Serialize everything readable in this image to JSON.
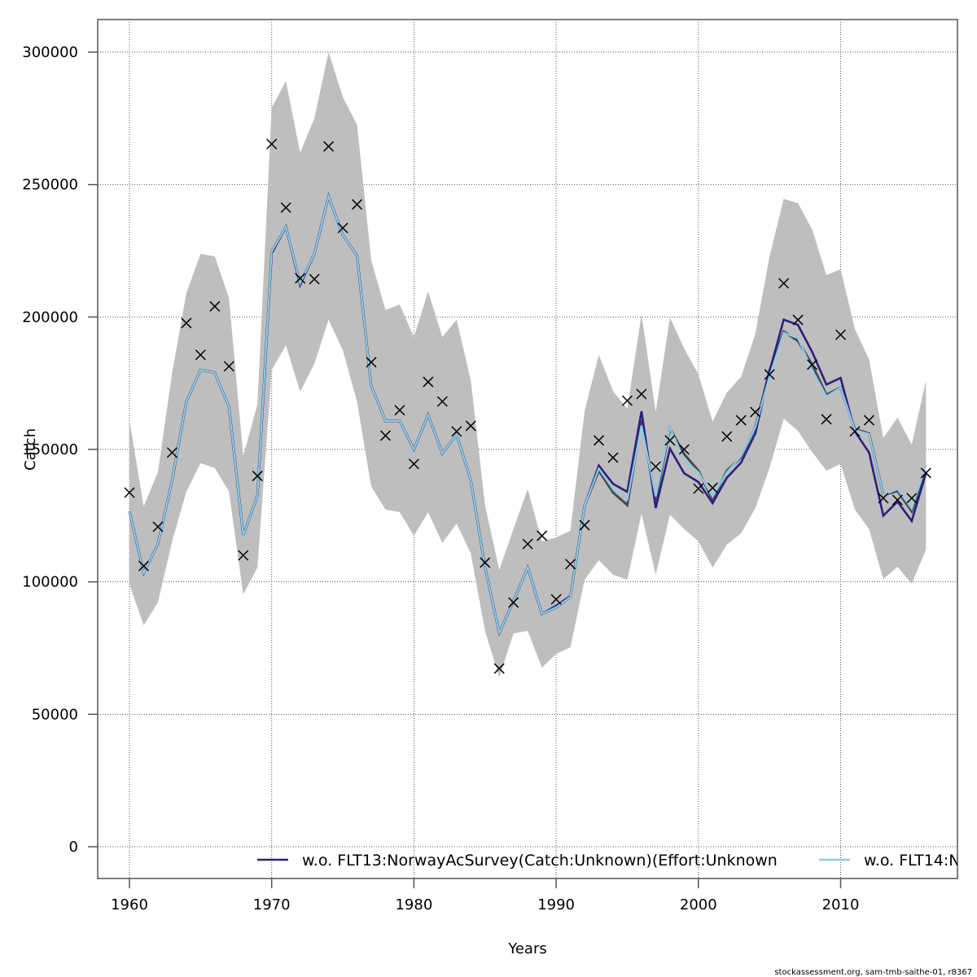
{
  "chart_data": {
    "type": "line",
    "title": "",
    "xlabel": "Years",
    "ylabel": "Catch",
    "xlim": [
      1957.8,
      2018.2
    ],
    "ylim": [
      -12000,
      313000
    ],
    "grid": true,
    "x_ticks": [
      1960,
      1970,
      1980,
      1990,
      2000,
      2010
    ],
    "x_tick_labels": [
      "1960",
      "1970",
      "1980",
      "1990",
      "2000",
      "2010"
    ],
    "y_ticks": [
      0,
      50000,
      100000,
      150000,
      200000,
      250000,
      300000
    ],
    "y_tick_labels": [
      "0",
      "50000",
      "100000",
      "150000",
      "200000",
      "250000",
      "300000"
    ],
    "legend_position": "bottom",
    "legend": [
      {
        "label": "w.o. FLT13:NorwayAcSurvey(Catch:Unknown)(Effort:Unknown",
        "color": "#2c1f80"
      },
      {
        "label": "w.o. FLT14:N",
        "color": "#87ceeb"
      }
    ],
    "footer": "stockassessment.org, sam-tmb-saithe-01, r8367",
    "colors": {
      "band": "#bebebe",
      "base_line": "#4a4a4a",
      "flt13": "#2c1f80",
      "flt14": "#87ceeb",
      "observed": "#000000",
      "grid": "#555555"
    },
    "years": [
      1960,
      1961,
      1962,
      1963,
      1964,
      1965,
      1966,
      1967,
      1968,
      1969,
      1970,
      1971,
      1972,
      1973,
      1974,
      1975,
      1976,
      1977,
      1978,
      1979,
      1980,
      1981,
      1982,
      1983,
      1984,
      1985,
      1986,
      1987,
      1988,
      1989,
      1990,
      1991,
      1992,
      1993,
      1994,
      1995,
      1996,
      1997,
      1998,
      1999,
      2000,
      2001,
      2002,
      2003,
      2004,
      2005,
      2006,
      2007,
      2008,
      2009,
      2010,
      2011,
      2012,
      2013,
      2014,
      2015,
      2016
    ],
    "band_upper": [
      161000,
      128500,
      141400,
      178900,
      209000,
      223800,
      222900,
      207000,
      147500,
      167000,
      279000,
      289000,
      262000,
      275000,
      300000,
      283000,
      272600,
      221400,
      202600,
      204700,
      192400,
      209600,
      192400,
      199000,
      176000,
      129000,
      104500,
      120000,
      135000,
      115300,
      116800,
      119300,
      164500,
      185700,
      172000,
      165400,
      201000,
      164100,
      199800,
      188100,
      178300,
      160500,
      171500,
      177400,
      193600,
      222800,
      244600,
      243000,
      233000,
      215800,
      218000,
      195500,
      184000,
      154300,
      162000,
      151800,
      176000
    ],
    "band_lower": [
      99000,
      83600,
      92200,
      115300,
      134000,
      144800,
      143000,
      134000,
      95300,
      105400,
      180000,
      189400,
      171800,
      182300,
      199000,
      187500,
      168000,
      136000,
      127300,
      126300,
      117400,
      126300,
      114700,
      122000,
      110700,
      81500,
      64000,
      80500,
      81500,
      67600,
      72800,
      75300,
      100800,
      108200,
      102700,
      100800,
      125700,
      102700,
      125400,
      119900,
      115300,
      105400,
      114000,
      118300,
      127800,
      143000,
      161600,
      157000,
      149000,
      142000,
      144500,
      127300,
      119900,
      101000,
      105700,
      99300,
      112200
    ],
    "series": [
      {
        "name": "base",
        "values": [
          126600,
          103300,
          114300,
          138300,
          168000,
          180000,
          179000,
          166000,
          117700,
          132500,
          224700,
          234000,
          212700,
          223800,
          245600,
          230900,
          223200,
          174000,
          160800,
          160800,
          150000,
          163000,
          148500,
          155600,
          138300,
          105400,
          80800,
          92800,
          105400,
          87900,
          90400,
          94300,
          128800,
          142000,
          133700,
          129000,
          161000,
          130600,
          158000,
          148200,
          142000,
          131000,
          142000,
          147000,
          158300,
          179800,
          194500,
          191000,
          182000,
          170600,
          173400,
          157700,
          156000,
          132800,
          134300,
          126600,
          141400
        ]
      },
      {
        "name": "w.o. FLT13:NorwayAcSurvey(Catch:Unknown)(Effort:Unknown",
        "values": [
          126600,
          103300,
          114300,
          138300,
          168000,
          180000,
          179000,
          166000,
          117700,
          132500,
          224000,
          234000,
          212000,
          223800,
          245600,
          230900,
          223200,
          174000,
          160800,
          160800,
          150000,
          163000,
          148500,
          155600,
          138300,
          105400,
          80800,
          92800,
          105400,
          87900,
          91000,
          94600,
          128800,
          143900,
          137000,
          134000,
          164400,
          127900,
          150300,
          141000,
          137700,
          129700,
          139300,
          145000,
          156000,
          179500,
          199000,
          197000,
          186800,
          174500,
          177000,
          156800,
          148800,
          125000,
          130300,
          123000,
          141000
        ]
      },
      {
        "name": "w.o. FLT14:N",
        "values": [
          126600,
          103300,
          114300,
          138300,
          168000,
          180000,
          179000,
          166000,
          117700,
          132500,
          224700,
          234000,
          212700,
          223800,
          245600,
          230900,
          223200,
          174000,
          160800,
          160800,
          150000,
          163000,
          148500,
          155600,
          138300,
          105400,
          80800,
          92800,
          105400,
          87900,
          90400,
          94300,
          128800,
          142800,
          135000,
          131000,
          159000,
          132200,
          158300,
          146000,
          141400,
          132200,
          141400,
          147500,
          158300,
          177600,
          194000,
          192000,
          180000,
          170000,
          173400,
          157400,
          155800,
          132800,
          135000,
          127600,
          143900
        ]
      }
    ],
    "observed": [
      133700,
      106000,
      120800,
      148800,
      197700,
      185700,
      204000,
      181400,
      110000,
      140000,
      265300,
      241300,
      214600,
      214300,
      264400,
      233600,
      242500,
      182900,
      155200,
      164800,
      144500,
      175500,
      168100,
      156800,
      158900,
      107300,
      67300,
      92200,
      114300,
      117400,
      93400,
      106700,
      121400,
      153400,
      146900,
      168400,
      170900,
      143500,
      153400,
      150000,
      135200,
      135500,
      154900,
      161000,
      164100,
      178300,
      212700,
      198900,
      182000,
      161400,
      193300,
      156800,
      161000,
      131600,
      130900,
      131600,
      141100
    ]
  }
}
